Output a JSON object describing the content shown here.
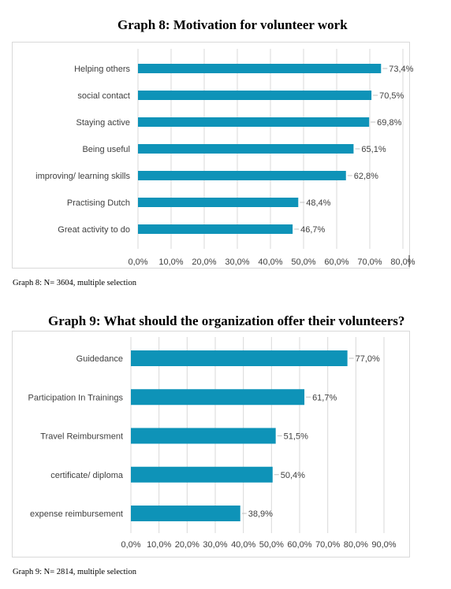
{
  "chart_data": [
    {
      "type": "bar",
      "orientation": "horizontal",
      "title": "Graph 8: Motivation for volunteer work",
      "note": "Graph 8: N= 3604, multiple selection",
      "categories": [
        "Helping others",
        "social contact",
        "Staying active",
        "Being useful",
        "improving/ learning skills",
        "Practising Dutch",
        "Great activity to do"
      ],
      "values": [
        73.4,
        70.5,
        69.8,
        65.1,
        62.8,
        48.4,
        46.7
      ],
      "value_labels": [
        "73,4%",
        "70,5%",
        "69,8%",
        "65,1%",
        "62,8%",
        "48,4%",
        "46,7%"
      ],
      "xlim": [
        0,
        80
      ],
      "tick_labels": [
        "0,0%",
        "10,0%",
        "20,0%",
        "30,0%",
        "40,0%",
        "50,0%",
        "60,0%",
        "70,0%",
        "80,0%"
      ],
      "grid": true,
      "bar_color": "#0e93b8"
    },
    {
      "type": "bar",
      "orientation": "horizontal",
      "title": "Graph 9: What should the organization offer their volunteers?",
      "note": "Graph 9: N= 2814, multiple selection",
      "categories": [
        "Guidedance",
        "Participation In Trainings",
        "Travel Reimbursment",
        "certificate/ diploma",
        "expense reimbursement"
      ],
      "values": [
        77.0,
        61.7,
        51.5,
        50.4,
        38.9
      ],
      "value_labels": [
        "77,0%",
        "61,7%",
        "51,5%",
        "50,4%",
        "38,9%"
      ],
      "xlim": [
        0,
        90
      ],
      "tick_labels": [
        "0,0%",
        "10,0%",
        "20,0%",
        "30,0%",
        "40,0%",
        "50,0%",
        "60,0%",
        "70,0%",
        "80,0%",
        "90,0%"
      ],
      "grid": true,
      "bar_color": "#0e93b8"
    }
  ]
}
